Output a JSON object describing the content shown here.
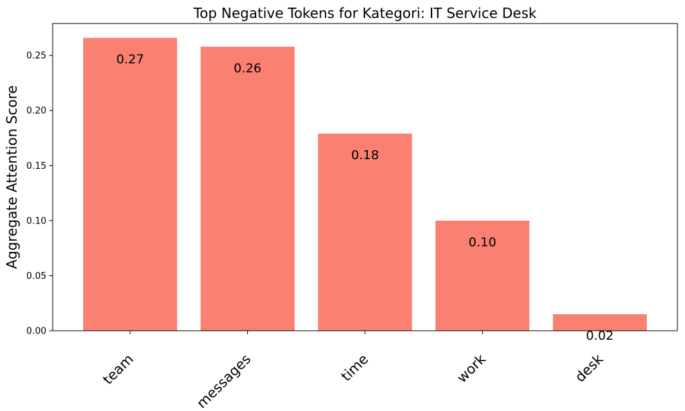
{
  "chart_data": {
    "type": "bar",
    "title": "Top Negative Tokens for Kategori: IT Service Desk",
    "xlabel": "",
    "ylabel": "Aggregate Attention Score",
    "categories": [
      "team",
      "messages",
      "time",
      "work",
      "desk"
    ],
    "values": [
      0.266,
      0.258,
      0.179,
      0.1,
      0.015
    ],
    "data_labels": [
      "0.27",
      "0.26",
      "0.18",
      "0.10",
      "0.02"
    ],
    "ylim": [
      0,
      0.279
    ],
    "yticks": [
      0.0,
      0.05,
      0.1,
      0.15,
      0.2,
      0.25
    ],
    "ytick_labels": [
      "0.00",
      "0.05",
      "0.10",
      "0.15",
      "0.20",
      "0.25"
    ],
    "bar_color": "#fa8072",
    "grid": false,
    "legend": "none"
  }
}
